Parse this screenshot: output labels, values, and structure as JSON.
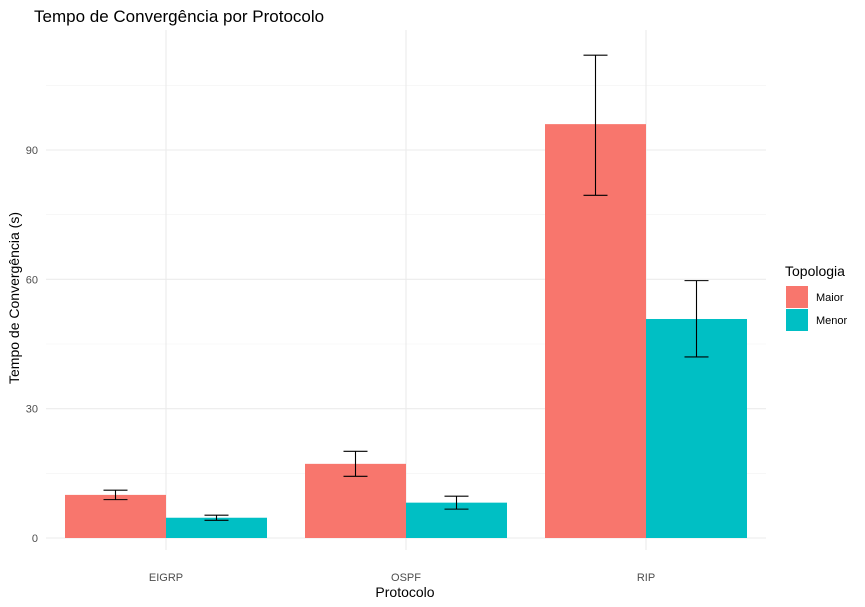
{
  "chart_data": {
    "type": "bar",
    "title": "Tempo de Convergência por Protocolo",
    "xlabel": "Protocolo",
    "ylabel": "Tempo de Convergência (s)",
    "categories": [
      "EIGRP",
      "OSPF",
      "RIP"
    ],
    "ylim": [
      0,
      117
    ],
    "yticks": [
      0,
      30,
      60,
      90
    ],
    "grid": true,
    "legend": {
      "title": "Topologia",
      "position": "right"
    },
    "series": [
      {
        "name": "Maior",
        "color": "#F8766D",
        "values": [
          10,
          17.2,
          96
        ],
        "error_low": [
          8.9,
          14.3,
          79.5
        ],
        "error_high": [
          11.1,
          20.1,
          112
        ]
      },
      {
        "name": "Menor",
        "color": "#00BFC4",
        "values": [
          4.7,
          8.2,
          50.8
        ],
        "error_low": [
          4.1,
          6.7,
          42
        ],
        "error_high": [
          5.3,
          9.7,
          59.7
        ]
      }
    ]
  }
}
